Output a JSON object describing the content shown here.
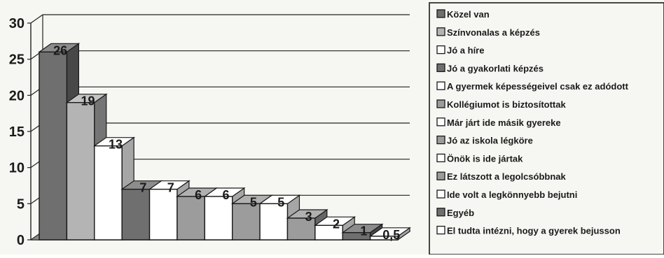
{
  "chart_data": {
    "type": "bar",
    "title": "",
    "xlabel": "",
    "ylabel": "",
    "ylim": [
      0,
      30
    ],
    "yticks": [
      0,
      5,
      10,
      15,
      20,
      25,
      30
    ],
    "grid": true,
    "legend_position": "right",
    "categories": [
      "Közel van",
      "Színvonalas a képzés",
      "Jó a híre",
      "Jó a gyakorlati képzés",
      "A gyermek képességeivel csak ez adódott",
      "Kollégiumot is biztosítottak",
      "Már járt ide másik gyereke",
      "Jó az iskola légköre",
      "Önök is ide jártak",
      "Ez látszott a legolcsóbbnak",
      "Ide volt a legkönnyebb bejutni",
      "Egyéb",
      "El tudta intézni, hogy a gyerek bejusson"
    ],
    "values": [
      26,
      19,
      13,
      7,
      7,
      6,
      6,
      5,
      5,
      3,
      2,
      1,
      0.5
    ],
    "value_labels": [
      "26",
      "19",
      "13",
      "7",
      "7",
      "6",
      "6",
      "5",
      "5",
      "3",
      "2",
      "1",
      "0,5"
    ],
    "colors": [
      "#6f6f6f",
      "#b4b4b4",
      "#ffffff",
      "#6f6f6f",
      "#ffffff",
      "#9c9c9c",
      "#ffffff",
      "#9c9c9c",
      "#ffffff",
      "#9c9c9c",
      "#ffffff",
      "#6f6f6f",
      "#ffffff"
    ]
  }
}
